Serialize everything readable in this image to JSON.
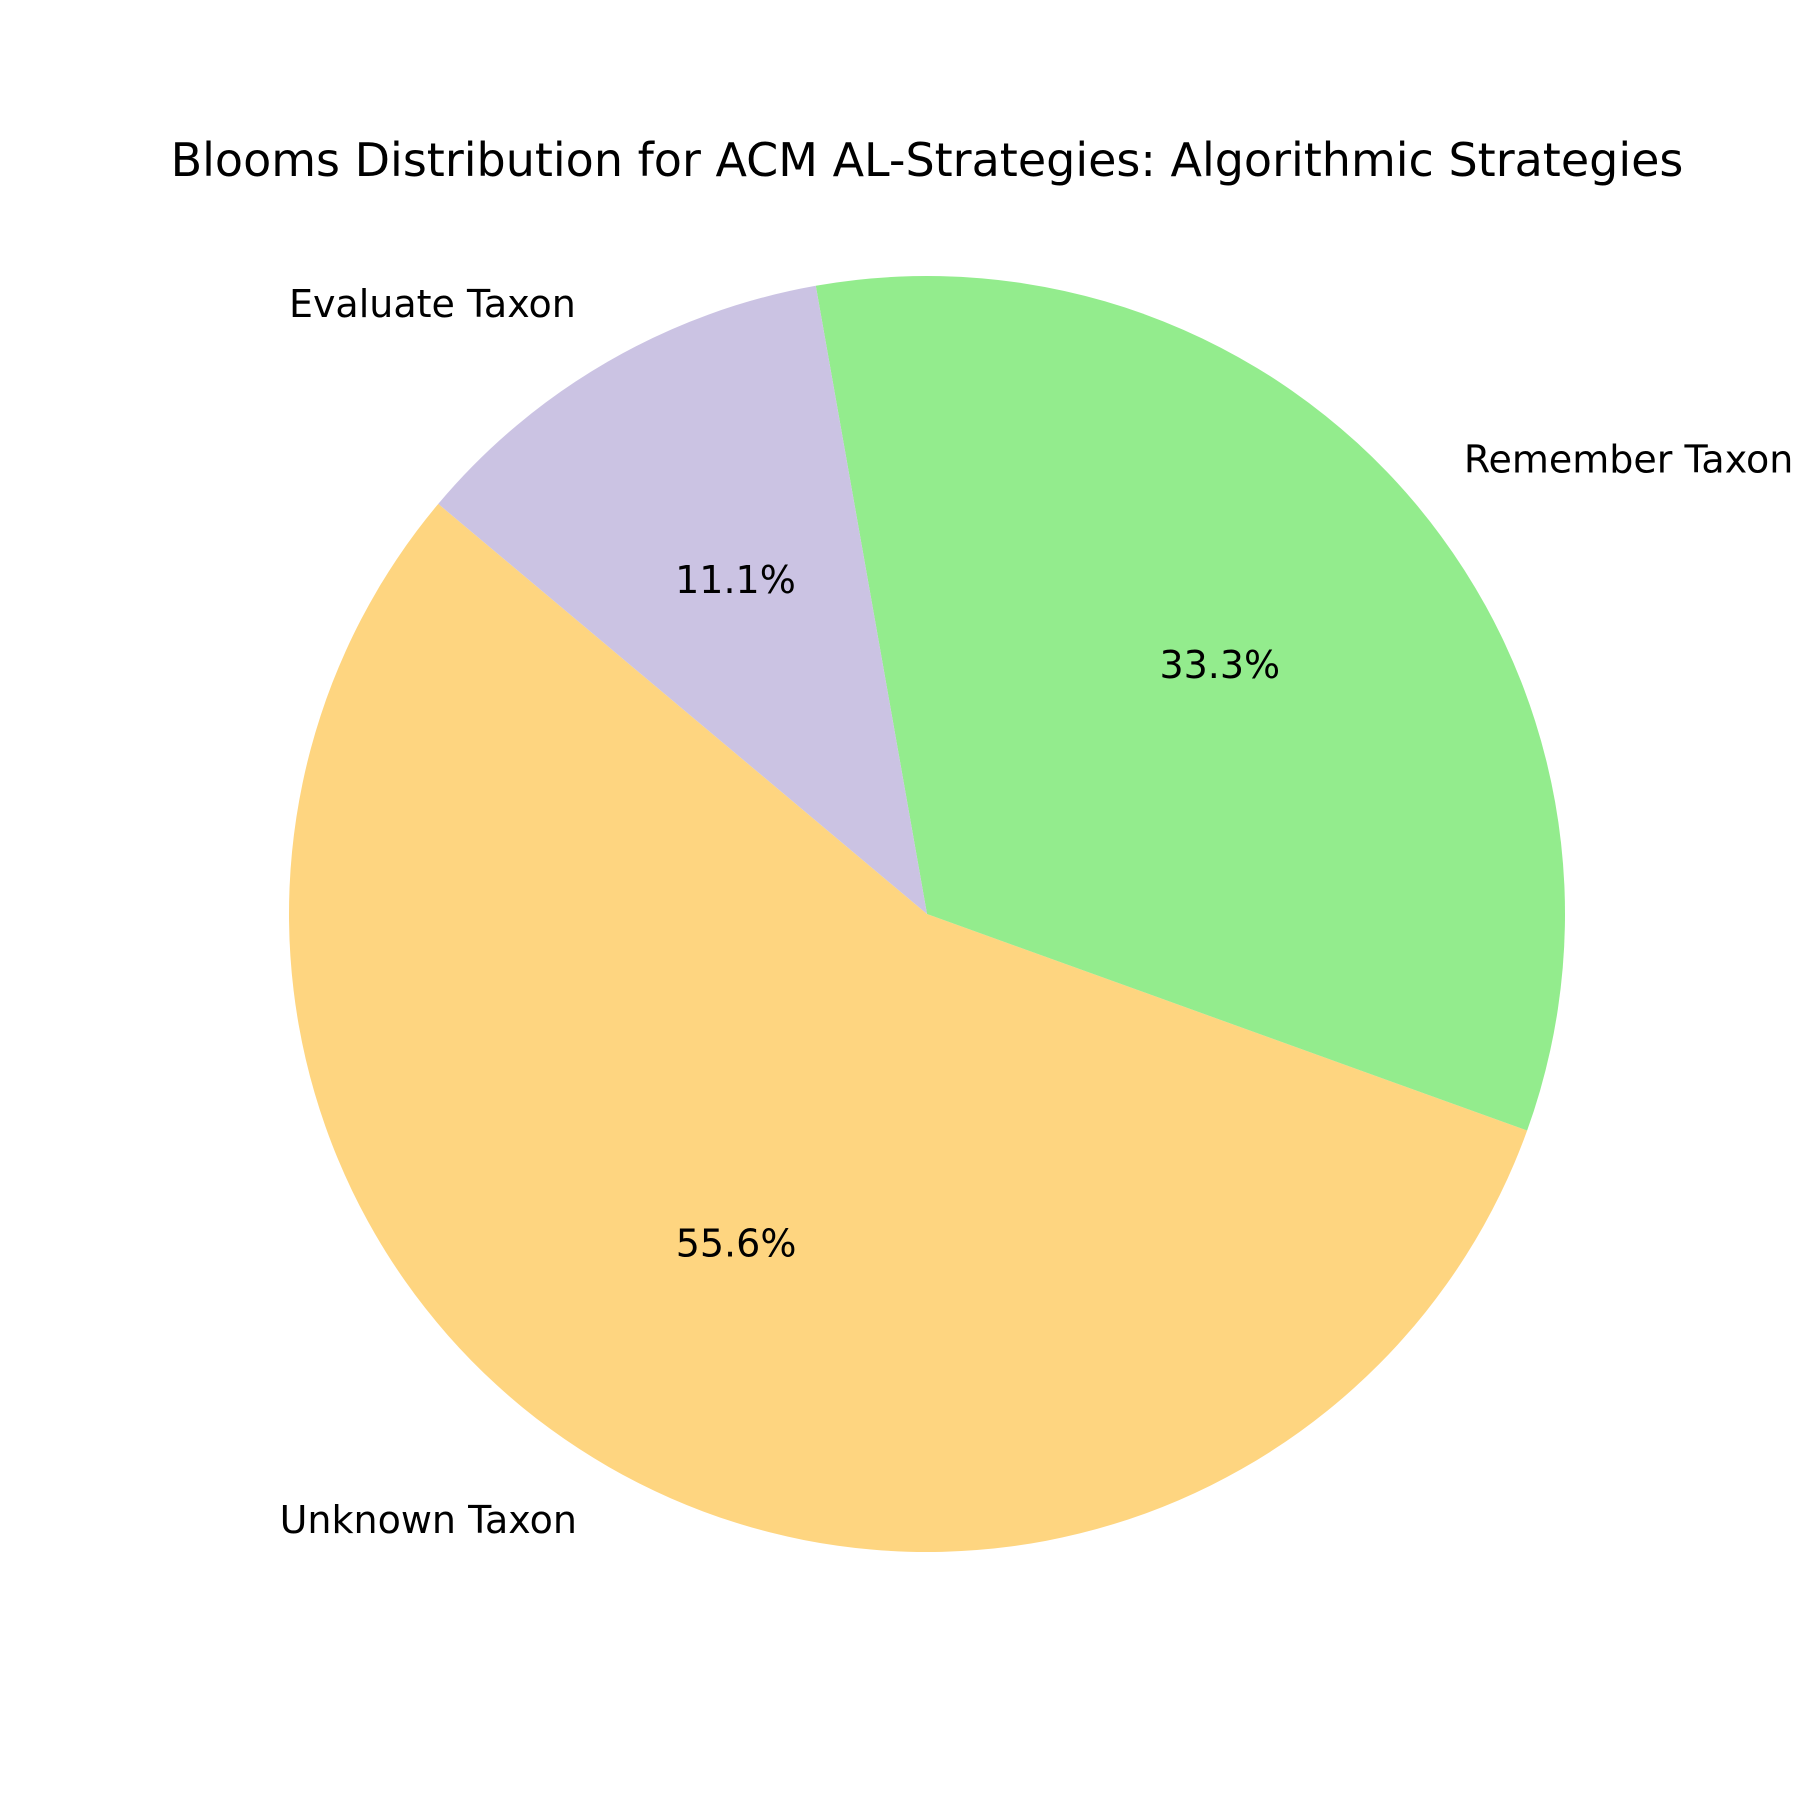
{
  "chart_data": {
    "type": "pie",
    "title": "Blooms Distribution for ACM AL-Strategies: Algorithmic Strategies",
    "slices": [
      {
        "label": "Unknown Taxon",
        "value": 55.6,
        "display": "55.6%",
        "color": "#fed580"
      },
      {
        "label": "Remember Taxon",
        "value": 33.3,
        "display": "33.3%",
        "color": "#93ec8d"
      },
      {
        "label": "Evaluate Taxon",
        "value": 11.1,
        "display": "11.1%",
        "color": "#cbc3e3"
      }
    ],
    "start_angle_deg": 140,
    "direction": "counterclockwise"
  }
}
